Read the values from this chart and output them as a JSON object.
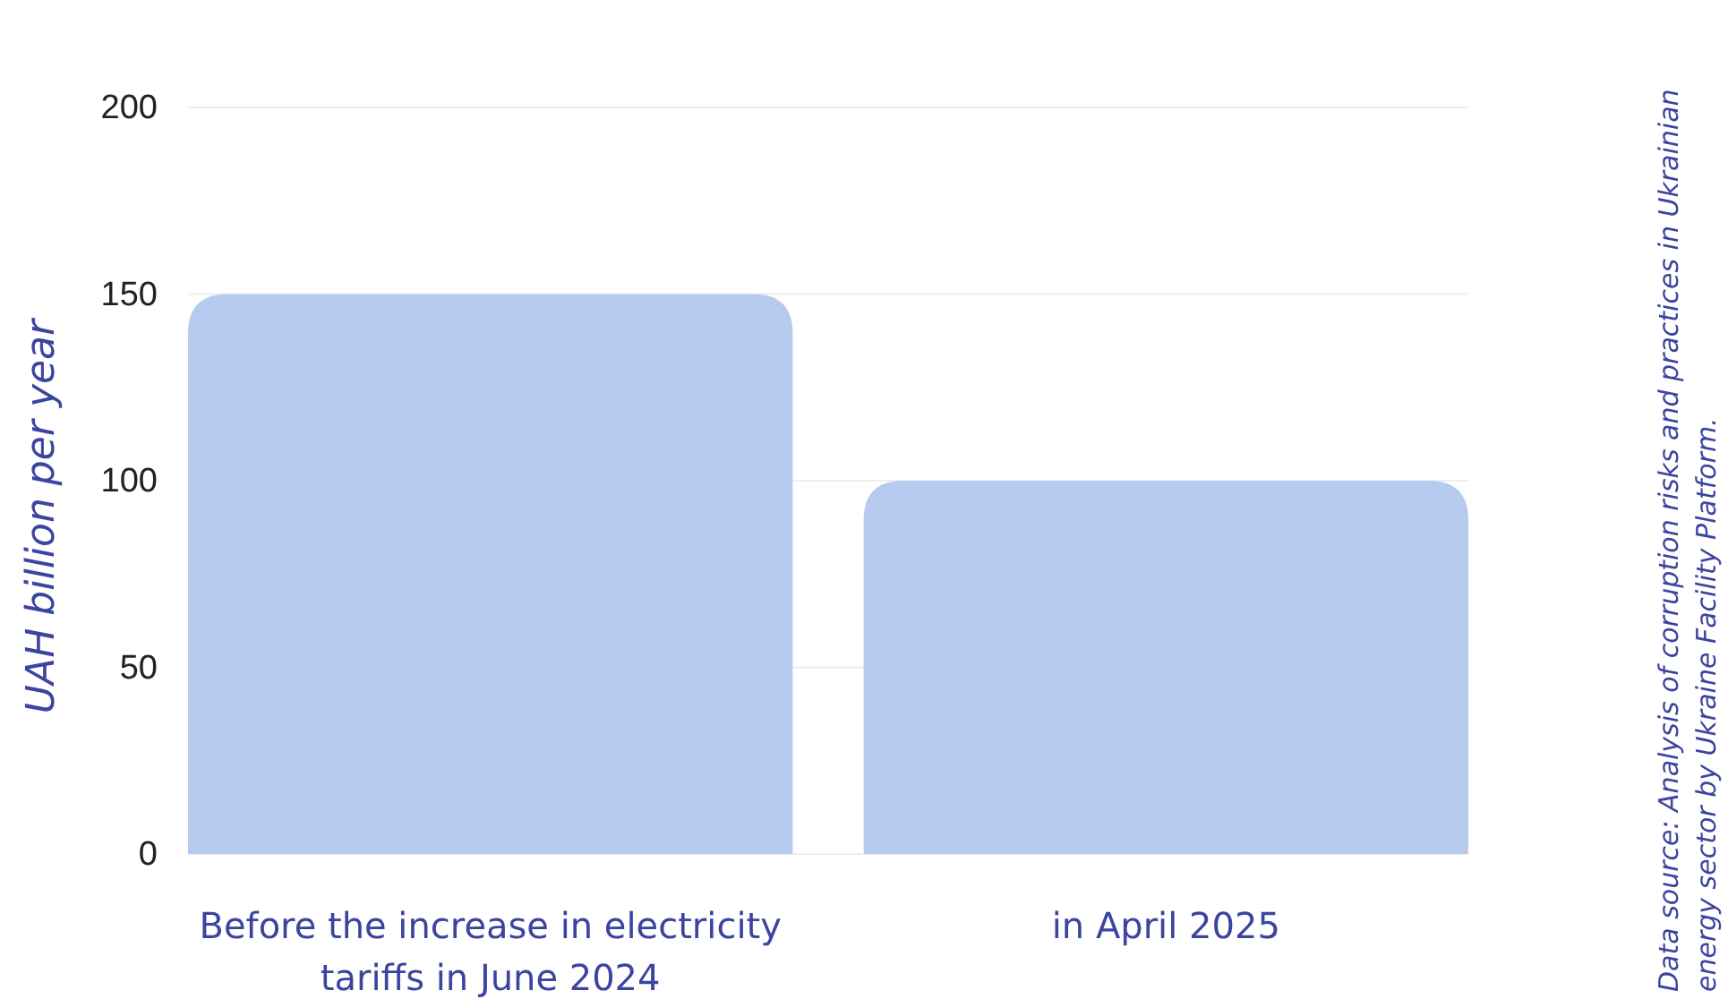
{
  "chart_data": {
    "type": "bar",
    "ylabel": "UAH billion per year",
    "categories": [
      "Before the increase in electricity tariffs in June 2024",
      "in April 2025"
    ],
    "values": [
      150,
      100
    ],
    "color": "#b7cbf0",
    "ylim": [
      0,
      200
    ],
    "yticks": [
      0,
      50,
      100,
      150,
      200
    ],
    "grid": "y",
    "annotations": [
      "Data source: Analysis of corruption risks and practices in Ukrainian energy sector by Ukraine Facility Platform."
    ]
  }
}
